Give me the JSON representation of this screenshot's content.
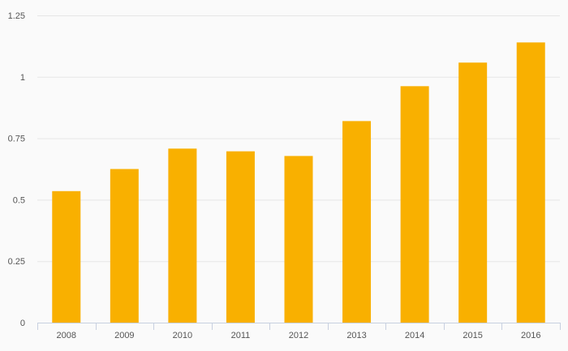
{
  "chart_data": {
    "type": "bar",
    "title": "",
    "xlabel": "",
    "ylabel": "",
    "categories": [
      "2008",
      "2009",
      "2010",
      "2011",
      "2012",
      "2013",
      "2014",
      "2015",
      "2016"
    ],
    "values": [
      0.535,
      0.625,
      0.708,
      0.697,
      0.678,
      0.82,
      0.962,
      1.058,
      1.14
    ],
    "ylim": [
      0,
      1.25
    ],
    "yticks": [
      0,
      0.25,
      0.5,
      0.75,
      1,
      1.25
    ],
    "ytick_labels": [
      "0",
      "0.25",
      "0.5",
      "0.75",
      "1",
      "1.25"
    ],
    "grid": true,
    "legend": "none",
    "colors": {
      "bar": "#f9b000",
      "grid": "#e6e6e6",
      "axis": "#c8d0e0",
      "background": "#fafafa"
    }
  }
}
